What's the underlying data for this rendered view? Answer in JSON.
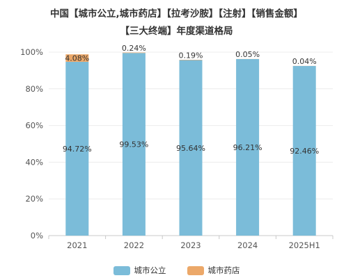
{
  "chart_data": {
    "type": "bar",
    "stacked": true,
    "title_line1": "中国【城市公立,城市药店】【拉考沙胺】【注射】【销售金额】",
    "title_line2": "【三大终端】年度渠道格局",
    "categories": [
      "2021",
      "2022",
      "2023",
      "2024",
      "2025H1"
    ],
    "series": [
      {
        "name": "城市公立",
        "color": "#7bbcd9",
        "values": [
          94.72,
          99.53,
          95.64,
          96.21,
          92.46
        ],
        "labels": [
          "94.72%",
          "99.53%",
          "95.64%",
          "96.21%",
          "92.46%"
        ]
      },
      {
        "name": "城市药店",
        "color": "#eca869",
        "values": [
          4.08,
          0.24,
          0.19,
          0.05,
          0.04
        ],
        "labels": [
          "4.08%",
          "0.24%",
          "0.19%",
          "0.05%",
          "0.04%"
        ]
      }
    ],
    "ylim": [
      0,
      100
    ],
    "yticks": [
      "0%",
      "20%",
      "40%",
      "60%",
      "80%",
      "100%"
    ],
    "grid": true,
    "legend_position": "bottom"
  }
}
